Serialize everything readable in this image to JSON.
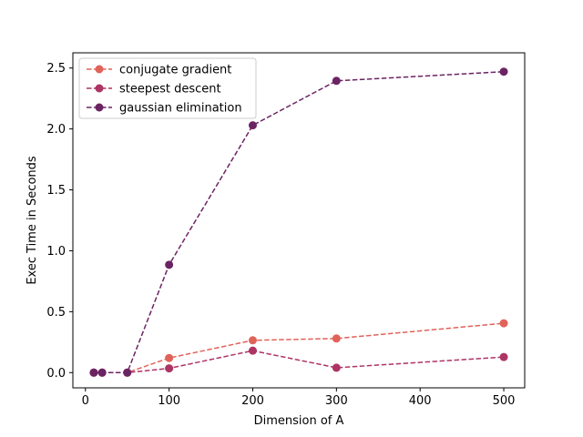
{
  "chart_data": {
    "type": "line",
    "title": "",
    "xlabel": "Dimension of A",
    "ylabel": "Exec Time in Seconds",
    "xlim": [
      -15,
      525
    ],
    "ylim": [
      -0.125,
      2.625
    ],
    "xticks": [
      0,
      100,
      200,
      300,
      400,
      500
    ],
    "xtick_labels": [
      "0",
      "100",
      "200",
      "300",
      "400",
      "500"
    ],
    "yticks": [
      0.0,
      0.5,
      1.0,
      1.5,
      2.0,
      2.5
    ],
    "ytick_labels": [
      "0.0",
      "0.5",
      "1.0",
      "1.5",
      "2.0",
      "2.5"
    ],
    "grid": false,
    "legend_position": "upper-left",
    "x": [
      10,
      20,
      50,
      100,
      200,
      300,
      500
    ],
    "series": [
      {
        "name": "conjugate gradient",
        "color": "#e0635a",
        "values": [
          0.0,
          0.0,
          0.0,
          0.12,
          0.265,
          0.28,
          0.405
        ]
      },
      {
        "name": "steepest descent",
        "color": "#ad3465",
        "values": [
          0.0,
          0.0,
          0.0,
          0.035,
          0.18,
          0.04,
          0.128
        ]
      },
      {
        "name": "gaussian elimination",
        "color": "#6b2463",
        "values": [
          0.0,
          0.0,
          0.0,
          0.885,
          2.03,
          2.395,
          2.47
        ]
      }
    ]
  }
}
